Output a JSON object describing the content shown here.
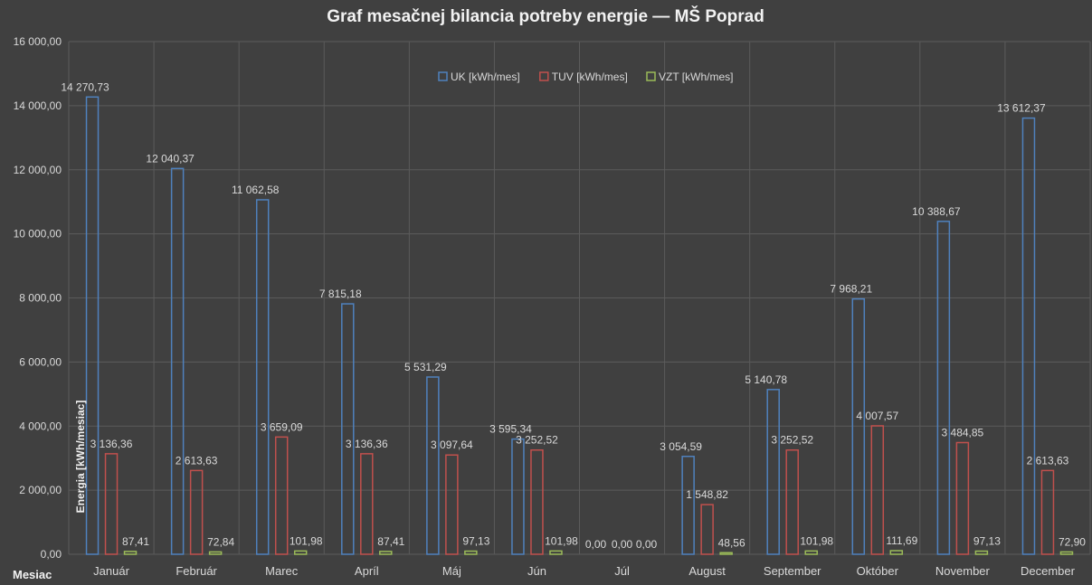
{
  "chart_data": {
    "type": "bar",
    "title": "Graf mesačnej bilancia potreby energie — MŠ Poprad",
    "xlabel": "Mesiac",
    "ylabel": "Energia [kWh/mesiac]",
    "ylim": [
      0,
      16000
    ],
    "yticks": [
      "0,00",
      "2 000,00",
      "4 000,00",
      "6 000,00",
      "8 000,00",
      "10 000,00",
      "12 000,00",
      "14 000,00",
      "16 000,00"
    ],
    "grid": true,
    "legend_position": "top-center",
    "categories": [
      "Január",
      "Február",
      "Marec",
      "Apríl",
      "Máj",
      "Jún",
      "Júl",
      "August",
      "September",
      "Október",
      "November",
      "December"
    ],
    "series": [
      {
        "name": "UK [kWh/mes]",
        "color": "#4f81bd",
        "values": [
          14270.73,
          12040.37,
          11062.58,
          7815.18,
          5531.29,
          3595.34,
          0,
          3054.59,
          5140.78,
          7968.21,
          10388.67,
          13612.37
        ],
        "labels": [
          "14 270,73",
          "12 040,37",
          "11 062,58",
          "7 815,18",
          "5 531,29",
          "3 595,34",
          "0,00",
          "3 054,59",
          "5 140,78",
          "7 968,21",
          "10 388,67",
          "13 612,37"
        ]
      },
      {
        "name": "TUV [kWh/mes]",
        "color": "#c0504d",
        "values": [
          3136.36,
          2613.63,
          3659.09,
          3136.36,
          3097.64,
          3252.52,
          0,
          1548.82,
          3252.52,
          4007.57,
          3484.85,
          2613.63
        ],
        "labels": [
          "3 136,36",
          "2 613,63",
          "3 659,09",
          "3 136,36",
          "3 097,64",
          "3 252,52",
          "0,00",
          "1 548,82",
          "3 252,52",
          "4 007,57",
          "3 484,85",
          "2 613,63"
        ]
      },
      {
        "name": "VZT [kWh/mes]",
        "color": "#9bbb59",
        "values": [
          87.41,
          72.84,
          101.98,
          87.41,
          97.13,
          101.98,
          0,
          48.56,
          101.98,
          111.69,
          97.13,
          72.9
        ],
        "labels": [
          "87,41",
          "72,84",
          "101,98",
          "87,41",
          "97,13",
          "101,98",
          "0,00",
          "48,56",
          "101,98",
          "111,69",
          "97,13",
          "72,90"
        ]
      }
    ]
  }
}
